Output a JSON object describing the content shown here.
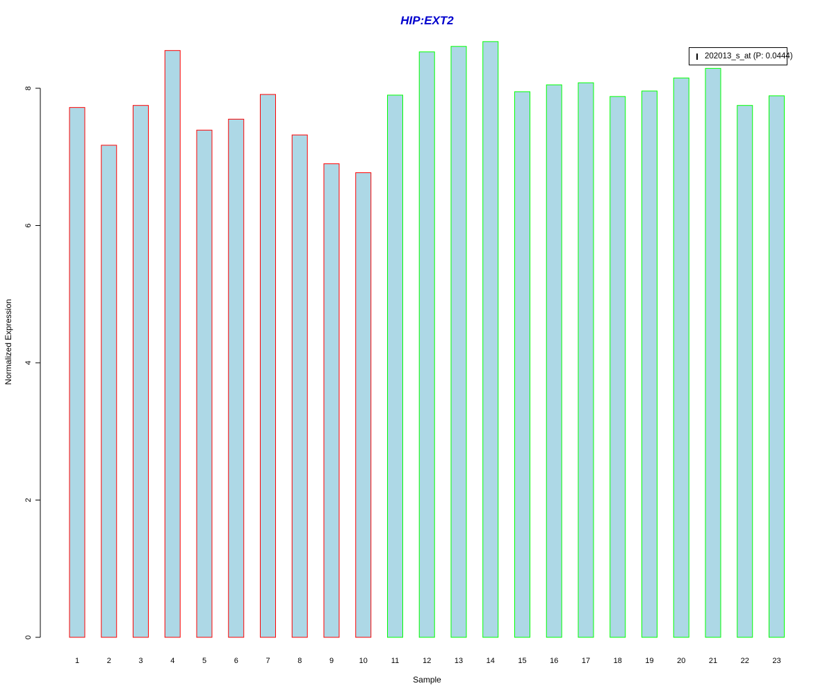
{
  "chart_data": {
    "type": "bar",
    "title": "HIP:EXT2",
    "xlabel": "Sample",
    "ylabel": "Normalized Expression",
    "categories": [
      "1",
      "2",
      "3",
      "4",
      "5",
      "6",
      "7",
      "8",
      "9",
      "10",
      "11",
      "12",
      "13",
      "14",
      "15",
      "16",
      "17",
      "18",
      "19",
      "20",
      "21",
      "22",
      "23"
    ],
    "values": [
      7.72,
      7.17,
      7.75,
      8.55,
      7.39,
      7.55,
      7.91,
      7.32,
      6.9,
      6.77,
      7.9,
      8.53,
      8.61,
      8.68,
      7.95,
      8.05,
      8.08,
      7.88,
      7.96,
      8.15,
      8.29,
      7.75,
      7.89
    ],
    "groups": [
      "red",
      "red",
      "red",
      "red",
      "red",
      "red",
      "red",
      "red",
      "red",
      "red",
      "green",
      "green",
      "green",
      "green",
      "green",
      "green",
      "green",
      "green",
      "green",
      "green",
      "green",
      "green",
      "green"
    ],
    "ylim": [
      0,
      8.75
    ],
    "yticks": [
      0,
      2,
      4,
      6,
      8
    ],
    "grid": false,
    "legend": {
      "placement": "top-right",
      "label": "202013_s_at (P: 0.0444)"
    },
    "colors": {
      "fill": "#add8e6",
      "red_border": "#ff0000",
      "green_border": "#00ff00",
      "title": "#0000cd"
    }
  }
}
